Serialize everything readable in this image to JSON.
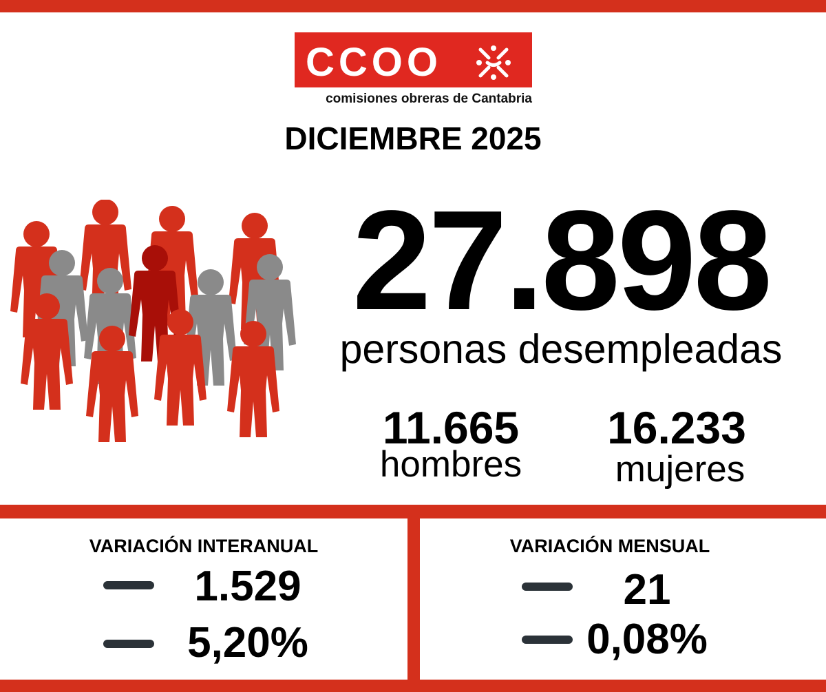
{
  "logo": {
    "brand_text": "CCOO",
    "subtitle": "comisiones obreras de Cantabria",
    "emblem_icon": "ccoo-emblem-icon",
    "brand_color": "#e02820"
  },
  "period": "DICIEMBRE 2025",
  "total": {
    "value": "27.898",
    "label": "personas desempleadas"
  },
  "breakdown": [
    {
      "value": "11.665",
      "label": "hombres"
    },
    {
      "value": "16.233",
      "label": "mujeres"
    }
  ],
  "variations": [
    {
      "heading": "VARIACIÓN INTERANUAL",
      "rows": [
        {
          "sign_icon": "minus-icon",
          "value": "1.529"
        },
        {
          "sign_icon": "minus-icon",
          "value": "5,20%"
        }
      ]
    },
    {
      "heading": "VARIACIÓN MENSUAL",
      "rows": [
        {
          "sign_icon": "minus-icon",
          "value": "21"
        },
        {
          "sign_icon": "minus-icon",
          "value": "0,08%"
        }
      ]
    }
  ],
  "colors": {
    "accent_red": "#d4301c",
    "dark_red": "#a80f08",
    "gray": "#8a8a8a",
    "dash": "#2b3238"
  }
}
